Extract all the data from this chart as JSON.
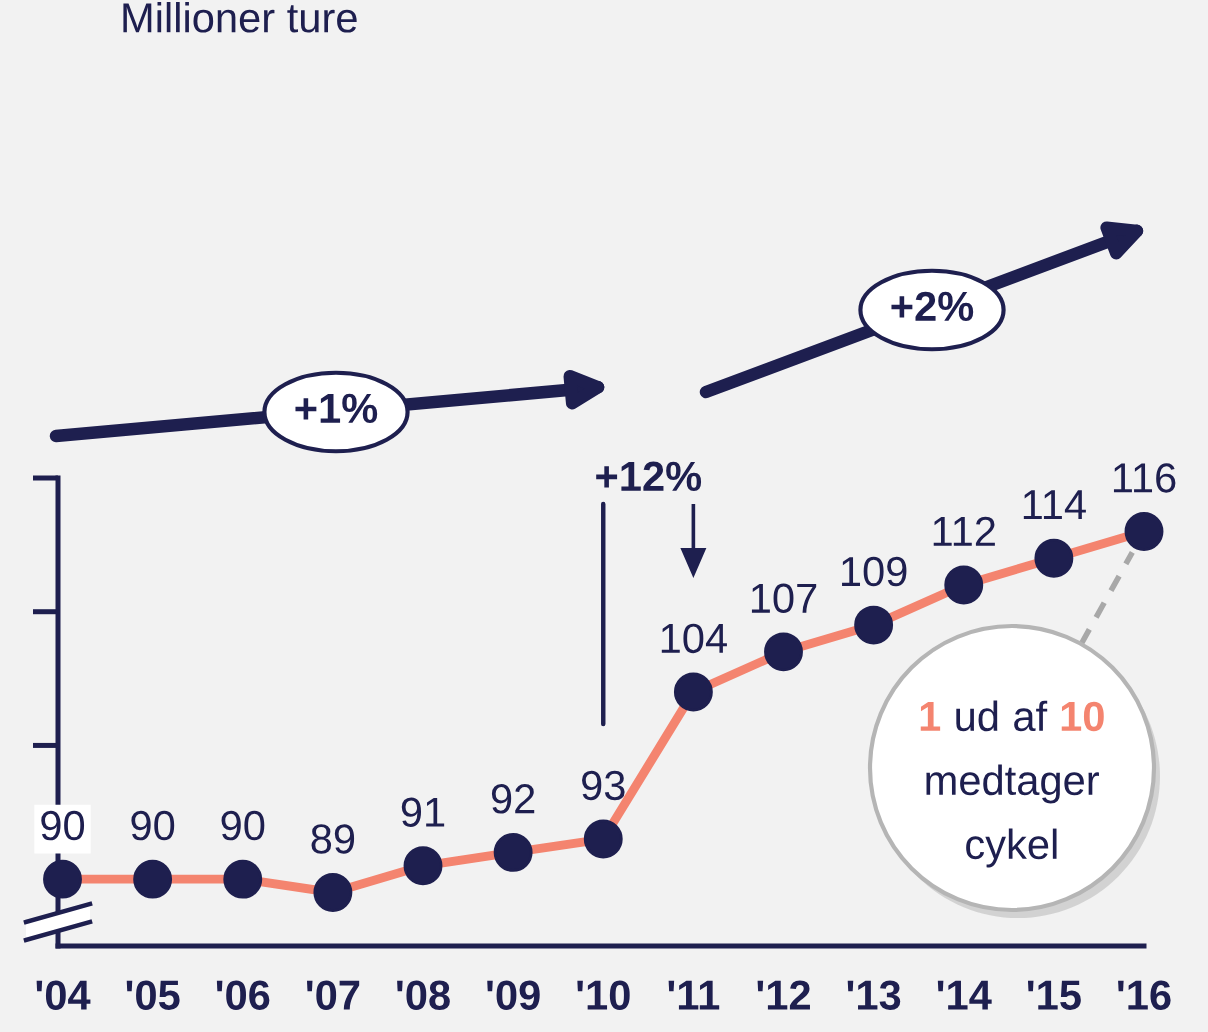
{
  "chart_data": {
    "type": "line",
    "title": "Millioner ture",
    "categories": [
      "'04",
      "'05",
      "'06",
      "'07",
      "'08",
      "'09",
      "'10",
      "'11",
      "'12",
      "'13",
      "'14",
      "'15",
      "'16"
    ],
    "series": [
      {
        "color": "#f4846f",
        "values": [
          90,
          90,
          90,
          89,
          91,
          92,
          93,
          104,
          107,
          109,
          112,
          114,
          116
        ]
      }
    ],
    "ylim": [
      85,
      120
    ],
    "yticks": [
      {
        "value": 100,
        "label": null
      },
      {
        "value": 110,
        "label": null
      },
      {
        "value": 120,
        "label": null
      }
    ],
    "tick_labels": "x",
    "data_labels": true,
    "marker": "circle",
    "line_style": "solid",
    "annotations": [
      "+1%",
      "+2%",
      "+12%",
      "1 ud af 10 medtager cykel"
    ]
  }
}
